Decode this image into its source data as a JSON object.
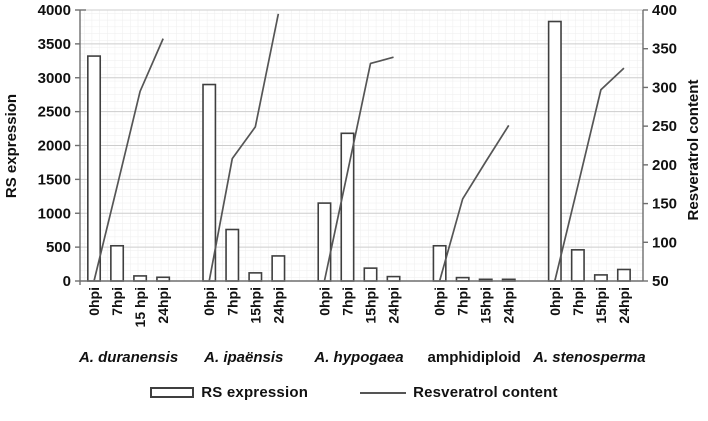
{
  "chart_data": {
    "type": "combo-bar-line",
    "title": "",
    "groups": [
      {
        "group": "A. duranensis",
        "italic": true,
        "timepoints": [
          "0hpi",
          "7hpi",
          "15 hpi",
          "24hpi"
        ],
        "rs_expression": [
          3320,
          520,
          75,
          55
        ],
        "resveratrol_content": [
          50,
          172,
          295,
          363
        ]
      },
      {
        "group": "A. ipaënsis",
        "italic": true,
        "timepoints": [
          "0hpi",
          "7hpi",
          "15hpi",
          "24hpi"
        ],
        "rs_expression": [
          2900,
          760,
          120,
          370
        ],
        "resveratrol_content": [
          50,
          208,
          249,
          395
        ]
      },
      {
        "group": "A. hypogaea",
        "italic": true,
        "timepoints": [
          "0hpi",
          "7hpi",
          "15hpi",
          "24hpi"
        ],
        "rs_expression": [
          1150,
          2180,
          190,
          65
        ],
        "resveratrol_content": [
          50,
          190,
          331,
          339
        ]
      },
      {
        "group": "amphidiploid",
        "italic": false,
        "timepoints": [
          "0hpi",
          "7hpi",
          "15hpi",
          "24hpi"
        ],
        "rs_expression": [
          520,
          50,
          25,
          25
        ],
        "resveratrol_content": [
          50,
          156,
          204,
          251
        ]
      },
      {
        "group": "A. stenosperma",
        "italic": true,
        "timepoints": [
          "0hpi",
          "7hpi",
          "15hpi",
          "24hpi"
        ],
        "rs_expression": [
          3830,
          460,
          90,
          170
        ],
        "resveratrol_content": [
          50,
          173,
          297,
          325
        ]
      }
    ],
    "series": [
      {
        "name": "RS expression",
        "type": "bar",
        "axis": "left"
      },
      {
        "name": "Resveratrol content",
        "type": "line",
        "axis": "right"
      }
    ],
    "left_axis": {
      "title": "RS expression",
      "min": 0,
      "max": 4000,
      "step": 500,
      "ticks": [
        0,
        500,
        1000,
        1500,
        2000,
        2500,
        3000,
        3500,
        4000
      ]
    },
    "right_axis": {
      "title": "Resveratrol content",
      "min": 50,
      "max": 400,
      "step": 50,
      "ticks": [
        50,
        100,
        150,
        200,
        250,
        300,
        350,
        400
      ]
    },
    "grid": {
      "major_horizontal": true,
      "minor_both": true
    },
    "legend": {
      "position": "bottom",
      "items": [
        {
          "label": "RS expression",
          "swatch": "bar-outline"
        },
        {
          "label": "Resveratrol content",
          "swatch": "line"
        }
      ]
    },
    "colors": {
      "background": "#ffffff",
      "bar_fill": "#ffffff",
      "bar_stroke": "#3f3f3f",
      "line": "#555555",
      "grid_major": "#cdcdcd",
      "grid_minor": "#ededed",
      "axis": "#6e6e6e",
      "text": "#111111"
    }
  }
}
